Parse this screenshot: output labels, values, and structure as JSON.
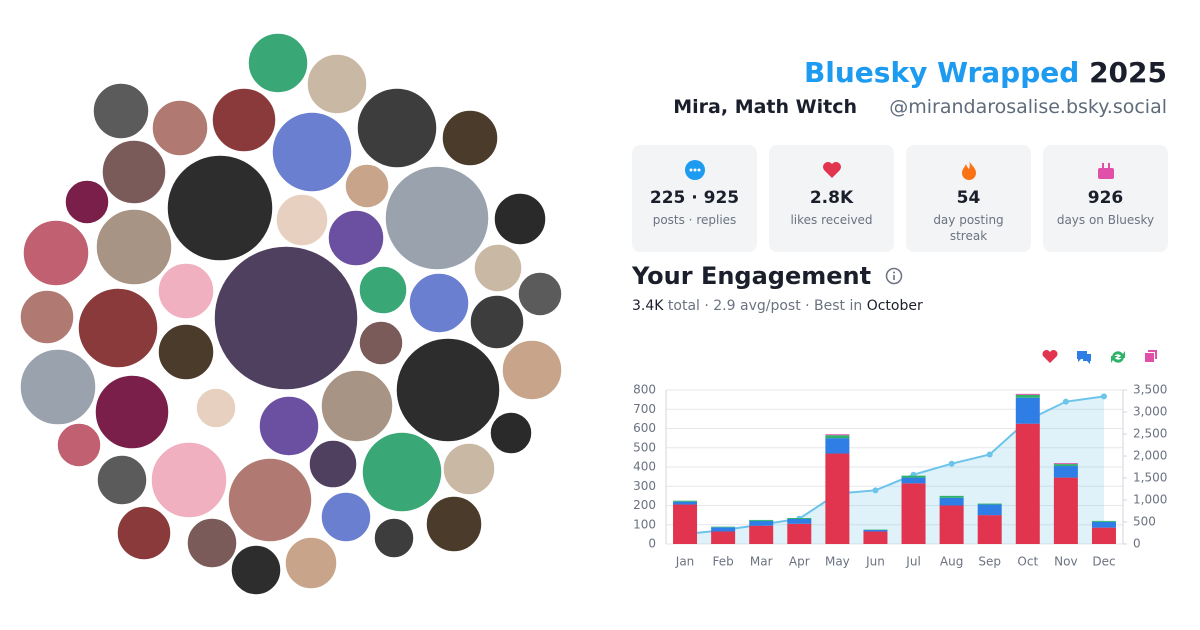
{
  "header": {
    "title_brand": "Bluesky Wrapped",
    "title_year": "2025",
    "name": "Mira, Math Witch",
    "handle": "@mirandarosalise.bsky.social"
  },
  "stats": [
    {
      "value": "225 · 925",
      "label": "posts · replies"
    },
    {
      "value": "2.8K",
      "label": "likes received"
    },
    {
      "value": "54",
      "label": "day posting streak"
    },
    {
      "value": "926",
      "label": "days on Bluesky"
    }
  ],
  "engagement": {
    "title": "Your Engagement",
    "subtitle": [
      "3.4K",
      "total · 2.9 avg/post · Best in",
      "October"
    ]
  },
  "chart_data": {
    "type": "bar",
    "stacked": true,
    "categories": [
      "Jan",
      "Feb",
      "Mar",
      "Apr",
      "May",
      "Jun",
      "Jul",
      "Aug",
      "Sep",
      "Oct",
      "Nov",
      "Dec"
    ],
    "series": [
      {
        "color": "#e0344f",
        "values": [
          205,
          65,
          95,
          105,
          470,
          65,
          315,
          200,
          150,
          625,
          345,
          85
        ]
      },
      {
        "color": "#2f7ee6",
        "values": [
          15,
          22,
          25,
          25,
          80,
          8,
          30,
          40,
          55,
          135,
          60,
          30
        ]
      },
      {
        "color": "#2fb36a",
        "values": [
          5,
          3,
          5,
          5,
          15,
          2,
          10,
          10,
          5,
          15,
          10,
          5
        ]
      },
      {
        "color": "#e04fa8",
        "values": [
          0,
          0,
          0,
          0,
          5,
          0,
          0,
          0,
          0,
          5,
          5,
          0
        ]
      },
      {
        "type": "line",
        "axis": "y2",
        "color": "#6cc4ea",
        "values": [
          225,
          315,
          440,
          575,
          1145,
          1220,
          1575,
          1825,
          2035,
          2815,
          3235,
          3355
        ]
      }
    ],
    "ylim": [
      0,
      800
    ],
    "yticks": [
      0,
      100,
      200,
      300,
      400,
      500,
      600,
      700,
      800
    ],
    "y2lim": [
      0,
      3500
    ],
    "y2ticks": [
      0,
      500,
      {
        "value": 1000,
        "label": "1,000"
      },
      {
        "value": 1500,
        "label": "1,500"
      },
      {
        "value": 2000,
        "label": "2,000"
      },
      {
        "value": 2500,
        "label": "2,500"
      },
      {
        "value": 3000,
        "label": "3,000"
      },
      {
        "value": 3500,
        "label": "3,500"
      }
    ],
    "grid": true
  }
}
